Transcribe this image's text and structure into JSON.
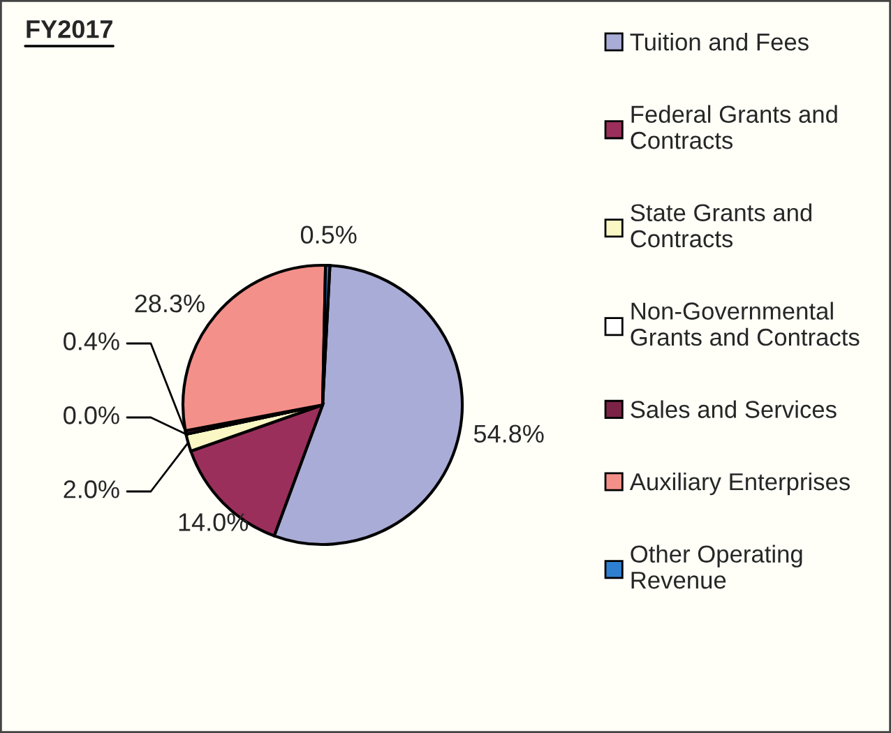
{
  "chart_data": {
    "type": "pie",
    "title": "FY2017",
    "categories": [
      "Tuition and Fees",
      "Federal Grants and Contracts",
      "State Grants and Contracts",
      "Non-Governmental Grants and Contracts",
      "Sales and Services",
      "Auxiliary Enterprises",
      "Other Operating Revenue"
    ],
    "values": [
      54.8,
      14.0,
      2.0,
      0.0,
      0.4,
      28.3,
      0.5
    ],
    "colors": [
      "#a9acd6",
      "#9b2f5b",
      "#fbf7c4",
      "#ffffff",
      "#7a2346",
      "#f4908a",
      "#2f7fd1"
    ],
    "value_labels": [
      "54.8%",
      "14.0%",
      "2.0%",
      "0.0%",
      "0.4%",
      "28.3%",
      "0.5%"
    ],
    "legend": "right"
  }
}
